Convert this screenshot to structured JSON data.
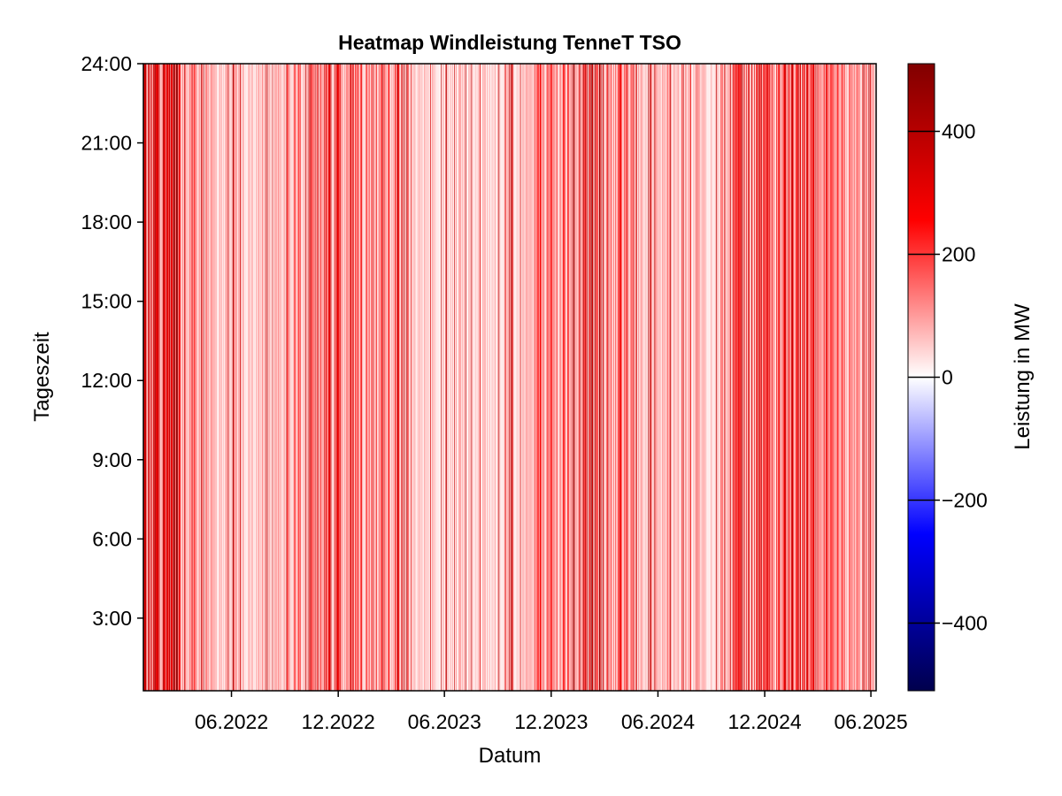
{
  "chart_data": {
    "type": "heatmap",
    "title": "Heatmap Windleistung TenneT TSO",
    "xlabel": "Datum",
    "ylabel": "Tageszeit",
    "colorbar_label": "Leistung in MW",
    "x_range": [
      "2022-01-01",
      "2025-06-10"
    ],
    "x_ticks": [
      {
        "date": "2022-06-01",
        "label": "06.2022"
      },
      {
        "date": "2022-12-01",
        "label": "12.2022"
      },
      {
        "date": "2023-06-01",
        "label": "06.2023"
      },
      {
        "date": "2023-12-01",
        "label": "12.2023"
      },
      {
        "date": "2024-06-01",
        "label": "06.2024"
      },
      {
        "date": "2024-12-01",
        "label": "12.2024"
      },
      {
        "date": "2025-06-01",
        "label": "06.2025"
      }
    ],
    "y_range": [
      0.25,
      24
    ],
    "y_ticks": [
      {
        "value": 3,
        "label": "3:00"
      },
      {
        "value": 6,
        "label": "6:00"
      },
      {
        "value": 9,
        "label": "9:00"
      },
      {
        "value": 12,
        "label": "12:00"
      },
      {
        "value": 15,
        "label": "15:00"
      },
      {
        "value": 18,
        "label": "18:00"
      },
      {
        "value": 21,
        "label": "21:00"
      },
      {
        "value": 24,
        "label": "24:00"
      }
    ],
    "color_range": [
      -510,
      510
    ],
    "colorbar_ticks": [
      {
        "value": 400,
        "label": "400"
      },
      {
        "value": 200,
        "label": "200"
      },
      {
        "value": 0,
        "label": "0"
      },
      {
        "value": -200,
        "label": "−200"
      },
      {
        "value": -400,
        "label": "−400"
      }
    ],
    "colormap": [
      "#00004d",
      "#0000ff",
      "#ffffff",
      "#ff0000",
      "#800000"
    ],
    "stripe_periods": [
      {
        "start": "2022-01-01",
        "end": "2022-01-15",
        "level": 260
      },
      {
        "start": "2022-01-15",
        "end": "2022-03-05",
        "level": 330
      },
      {
        "start": "2022-03-05",
        "end": "2022-04-15",
        "level": 130
      },
      {
        "start": "2022-04-15",
        "end": "2022-09-01",
        "level": 70
      },
      {
        "start": "2022-09-01",
        "end": "2022-11-01",
        "level": 110
      },
      {
        "start": "2022-11-01",
        "end": "2023-01-20",
        "level": 190
      },
      {
        "start": "2023-01-20",
        "end": "2023-04-01",
        "level": 140
      },
      {
        "start": "2023-04-01",
        "end": "2023-11-01",
        "level": 60
      },
      {
        "start": "2023-11-01",
        "end": "2024-01-01",
        "level": 140
      },
      {
        "start": "2024-01-01",
        "end": "2024-03-01",
        "level": 240
      },
      {
        "start": "2024-03-01",
        "end": "2024-05-01",
        "level": 120
      },
      {
        "start": "2024-05-01",
        "end": "2024-10-01",
        "level": 80
      },
      {
        "start": "2024-10-01",
        "end": "2025-03-01",
        "level": 180
      },
      {
        "start": "2025-03-01",
        "end": "2025-06-10",
        "level": 110
      }
    ]
  }
}
